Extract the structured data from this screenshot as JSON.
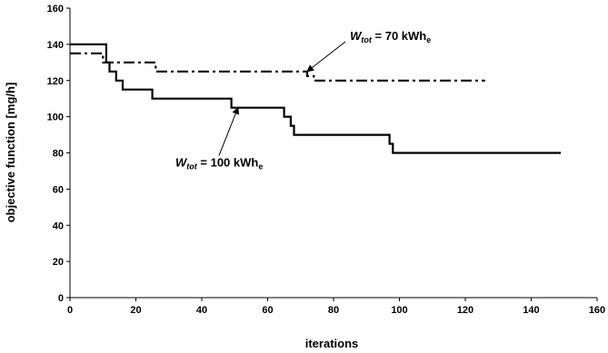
{
  "chart_data": {
    "type": "line",
    "title": "",
    "xlabel": "iterations",
    "ylabel": "objective function [mg/h]",
    "xlim": [
      0,
      160
    ],
    "ylim": [
      0,
      160
    ],
    "xticks": [
      0,
      20,
      40,
      60,
      80,
      100,
      120,
      140,
      160
    ],
    "yticks": [
      0,
      20,
      40,
      60,
      80,
      100,
      120,
      140,
      160
    ],
    "grid": false,
    "legend": "none",
    "series": [
      {
        "style": "solid",
        "color": "#000000",
        "x": [
          0,
          11,
          11,
          12,
          12,
          14,
          14,
          16,
          16,
          20,
          20,
          25,
          25,
          49,
          49,
          65,
          65,
          67,
          67,
          68,
          68,
          97,
          97,
          98,
          98,
          149
        ],
        "y": [
          140,
          140,
          130,
          130,
          125,
          125,
          120,
          120,
          115,
          115,
          115,
          115,
          110,
          110,
          105,
          105,
          100,
          100,
          95,
          95,
          90,
          90,
          85,
          85,
          80,
          80
        ]
      },
      {
        "style": "dash-dot",
        "color": "#000000",
        "x": [
          0,
          10,
          10,
          26,
          26,
          72,
          72,
          74,
          74,
          126
        ],
        "y": [
          135,
          135,
          130,
          130,
          125,
          125,
          122.5,
          122.5,
          120,
          120
        ]
      }
    ],
    "annotations": [
      {
        "sym": "W",
        "sub": "tot",
        "rest": " = 70 kWh",
        "rest_sub": "e",
        "text_x": 85,
        "text_y": 142.5,
        "arrow_to": [
          72,
          125
        ]
      },
      {
        "sym": "W",
        "sub": "tot",
        "rest": " = 100 kWh",
        "rest_sub": "e",
        "text_x": 32,
        "text_y": 72.5,
        "arrow_to": [
          51,
          105
        ]
      }
    ]
  }
}
